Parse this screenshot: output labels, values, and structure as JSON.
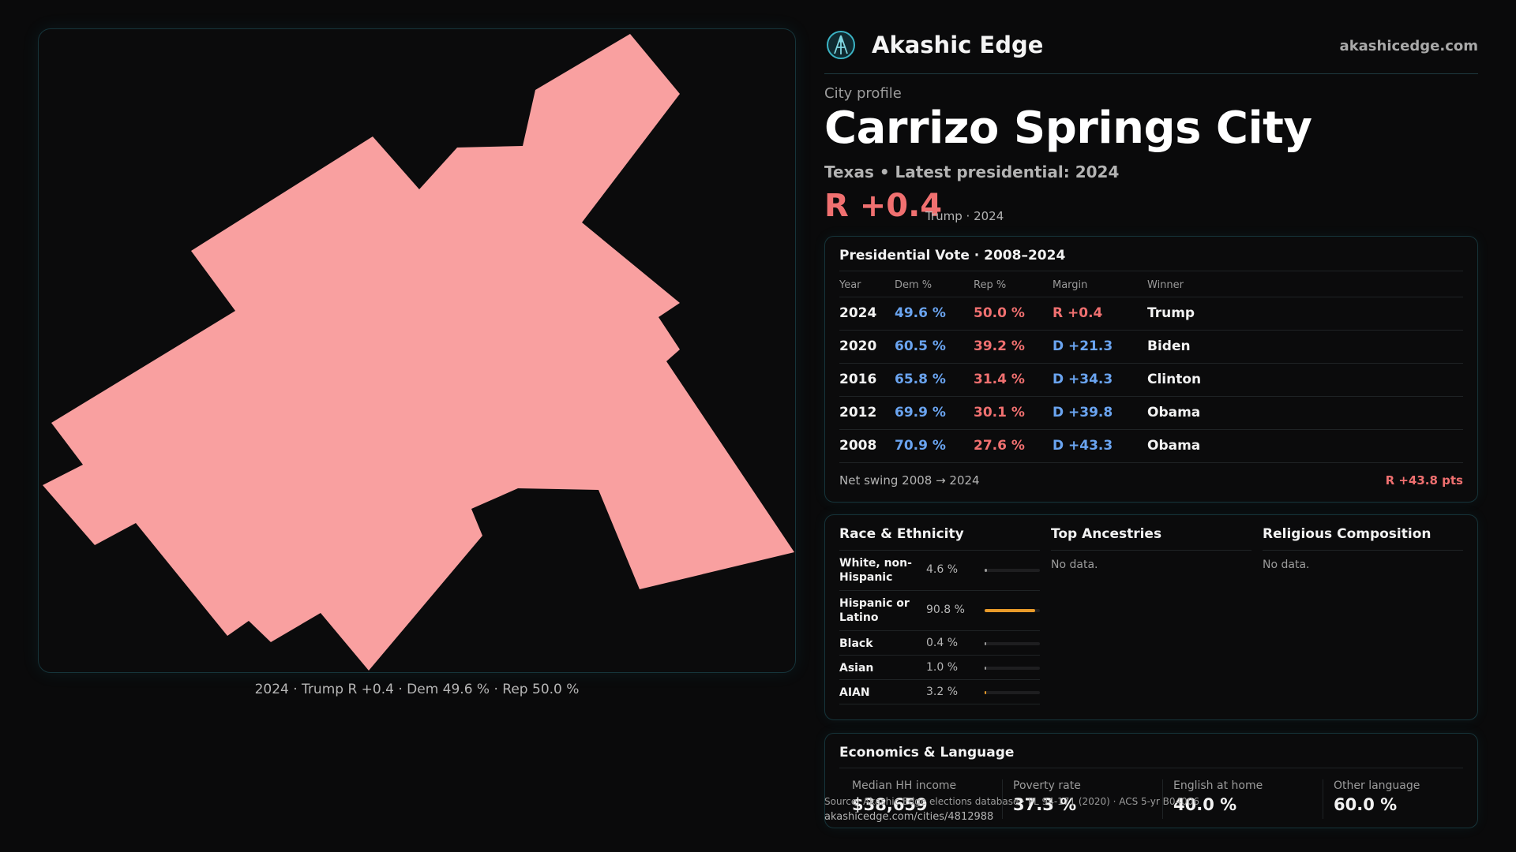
{
  "brand": {
    "name": "Akashic Edge",
    "url": "akashicedge.com",
    "logo_icon": "akashic-edge-logo-icon"
  },
  "map": {
    "fill_color": "#f9a0a0",
    "caption": "2024 · Trump R +0.4 · Dem 49.6 % · Rep 50.0 %"
  },
  "profile": {
    "eyebrow": "City profile",
    "city_name": "Carrizo Springs City",
    "subtitle": "Texas • Latest presidential: 2024",
    "margin_headline": "R +0.4",
    "margin_note": "Trump · 2024"
  },
  "votes": {
    "title": "Presidential Vote · 2008–2024",
    "headers": [
      "Year",
      "Dem %",
      "Rep %",
      "Margin",
      "Winner"
    ],
    "rows": [
      {
        "year": "2024",
        "dem": "49.6 %",
        "rep": "50.0 %",
        "margin": "R +0.4",
        "party": "R",
        "winner": "Trump"
      },
      {
        "year": "2020",
        "dem": "60.5 %",
        "rep": "39.2 %",
        "margin": "D +21.3",
        "party": "D",
        "winner": "Biden"
      },
      {
        "year": "2016",
        "dem": "65.8 %",
        "rep": "31.4 %",
        "margin": "D +34.3",
        "party": "D",
        "winner": "Clinton"
      },
      {
        "year": "2012",
        "dem": "69.9 %",
        "rep": "30.1 %",
        "margin": "D +39.8",
        "party": "D",
        "winner": "Obama"
      },
      {
        "year": "2008",
        "dem": "70.9 %",
        "rep": "27.6 %",
        "margin": "D +43.3",
        "party": "D",
        "winner": "Obama"
      }
    ],
    "swing_label": "Net swing 2008 → 2024",
    "swing_value": "R +43.8 pts"
  },
  "race": {
    "title": "Race & Ethnicity",
    "rows": [
      {
        "label": "White, non-Hispanic",
        "pct": "4.6 %",
        "share": 0.046,
        "color": "#9a9a9a"
      },
      {
        "label": "Hispanic or Latino",
        "pct": "90.8 %",
        "share": 0.908,
        "color": "#e89a2a"
      },
      {
        "label": "Black",
        "pct": "0.4 %",
        "share": 0.004,
        "color": "#9a9a9a"
      },
      {
        "label": "Asian",
        "pct": "1.0 %",
        "share": 0.01,
        "color": "#9a9a9a"
      },
      {
        "label": "AIAN",
        "pct": "3.2 %",
        "share": 0.032,
        "color": "#e89a2a"
      }
    ]
  },
  "ancestries": {
    "title": "Top Ancestries",
    "empty": "No data."
  },
  "religion": {
    "title": "Religious Composition",
    "empty": "No data."
  },
  "economics": {
    "title": "Economics & Language",
    "stats": [
      {
        "label": "Median HH income",
        "value": "$38,659"
      },
      {
        "label": "Poverty rate",
        "value": "37.3 %"
      },
      {
        "label": "English at home",
        "value": "40.0 %"
      },
      {
        "label": "Other language",
        "value": "60.0 %"
      }
    ]
  },
  "source": {
    "text": "Source: Akashic Edge elections database · PL 94-171 (2020) · ACS 5-yr B04006",
    "url": "akashicedge.com/cities/4812988"
  }
}
